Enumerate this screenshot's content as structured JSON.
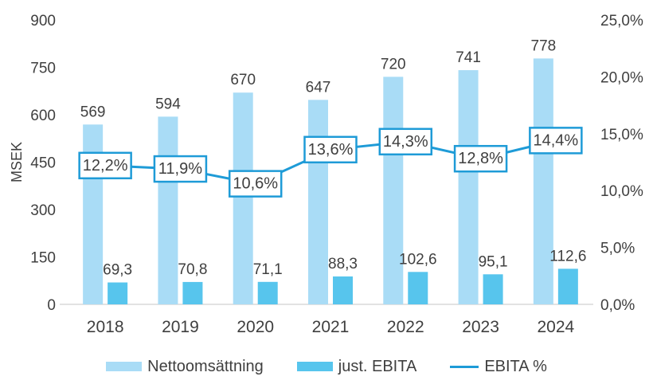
{
  "chart_data": {
    "type": "bar",
    "subtype": "grouped-bars-with-line-overlay",
    "categories": [
      "2018",
      "2019",
      "2020",
      "2021",
      "2022",
      "2023",
      "2024"
    ],
    "series": [
      {
        "name": "Nettoomsättning",
        "kind": "bar",
        "axis": "left",
        "color": "#A9DCF6",
        "values": [
          569,
          594,
          670,
          647,
          720,
          741,
          778
        ],
        "labels": [
          "569",
          "594",
          "670",
          "647",
          "720",
          "741",
          "778"
        ]
      },
      {
        "name": "just. EBITA",
        "kind": "bar",
        "axis": "left",
        "color": "#57C5ED",
        "values": [
          69.3,
          70.8,
          71.1,
          88.3,
          102.6,
          95.1,
          112.6
        ],
        "labels": [
          "69,3",
          "70,8",
          "71,1",
          "88,3",
          "102,6",
          "95,1",
          "112,6"
        ]
      },
      {
        "name": "EBITA %",
        "kind": "line",
        "axis": "right",
        "color": "#1E9BD7",
        "values": [
          12.2,
          11.9,
          10.6,
          13.6,
          14.3,
          12.8,
          14.4
        ],
        "labels": [
          "12,2%",
          "11,9%",
          "10,6%",
          "13,6%",
          "14,3%",
          "12,8%",
          "14,4%"
        ]
      }
    ],
    "left_axis": {
      "title": "MSEK",
      "min": 0,
      "max": 900,
      "step": 150,
      "tick_labels": [
        "0",
        "150",
        "300",
        "450",
        "600",
        "750",
        "900"
      ]
    },
    "right_axis": {
      "title": "",
      "min": 0,
      "max": 25,
      "step": 5,
      "tick_labels": [
        "0,0%",
        "5,0%",
        "10,0%",
        "15,0%",
        "20,0%",
        "25,0%"
      ]
    },
    "grid": false,
    "legend_position": "bottom",
    "colors": {
      "text": "#3f3f3f",
      "baseline": "#d9d9d9",
      "label_box_fill": "#ffffff"
    }
  },
  "legend": {
    "items": [
      {
        "label": "Nettoomsättning",
        "swatch": "bar-light"
      },
      {
        "label": "just. EBITA",
        "swatch": "bar-dark"
      },
      {
        "label": "EBITA %",
        "swatch": "line"
      }
    ]
  }
}
